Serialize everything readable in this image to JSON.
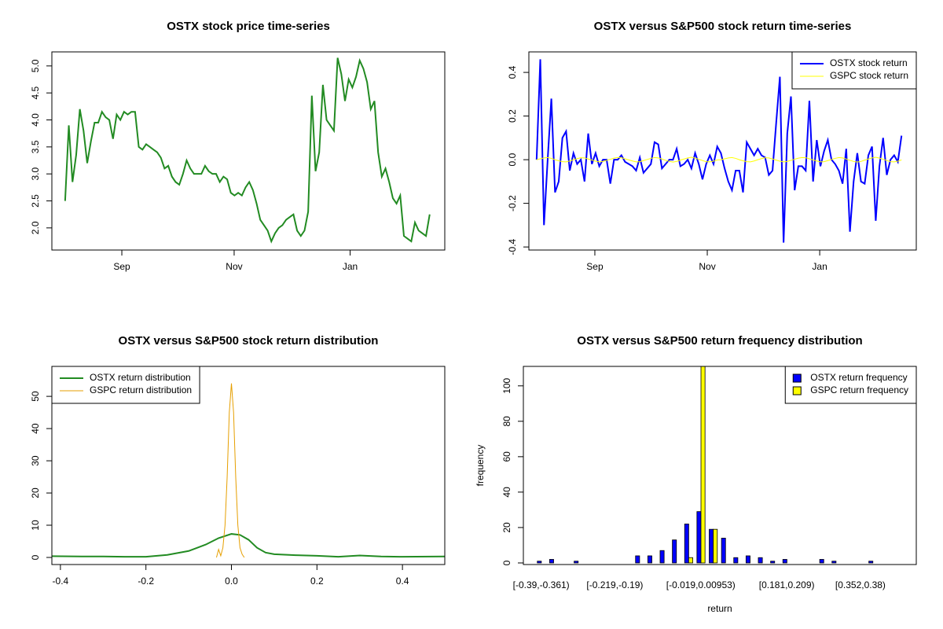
{
  "chart_data": [
    {
      "type": "line",
      "title": "OSTX stock price time-series",
      "color": "#228b22",
      "values": [
        2.5,
        3.9,
        2.85,
        3.35,
        4.2,
        3.8,
        3.2,
        3.6,
        3.95,
        3.95,
        4.15,
        4.05,
        4.0,
        3.65,
        4.1,
        4.0,
        4.15,
        4.1,
        4.15,
        4.15,
        3.5,
        3.45,
        3.55,
        3.5,
        3.45,
        3.4,
        3.3,
        3.1,
        3.15,
        2.95,
        2.85,
        2.8,
        3.0,
        3.25,
        3.1,
        3.0,
        3.0,
        3.0,
        3.15,
        3.05,
        3.0,
        3.0,
        2.85,
        2.95,
        2.9,
        2.65,
        2.6,
        2.65,
        2.6,
        2.75,
        2.85,
        2.7,
        2.45,
        2.15,
        2.05,
        1.95,
        1.75,
        1.9,
        2.0,
        2.05,
        2.15,
        2.2,
        2.25,
        1.95,
        1.85,
        1.95,
        2.3,
        4.45,
        3.05,
        3.4,
        4.65,
        4.0,
        3.9,
        3.8,
        5.15,
        4.85,
        4.35,
        4.75,
        4.6,
        4.8,
        5.1,
        4.95,
        4.7,
        4.2,
        4.35,
        3.4,
        2.95,
        3.1,
        2.85,
        2.55,
        2.45,
        2.6,
        1.85,
        1.8,
        1.75,
        2.1,
        1.95,
        1.9,
        1.85,
        2.25
      ],
      "xlim": [
        -3.6,
        103.1
      ],
      "xticks": [
        {
          "value": 15.4,
          "label": "Sep"
        },
        {
          "value": 45.9,
          "label": "Nov"
        },
        {
          "value": 77.4,
          "label": "Jan"
        }
      ],
      "ylim": [
        1.59,
        5.26
      ],
      "yticks": [
        {
          "value": 2,
          "label": "2.0"
        },
        2.5,
        {
          "value": 3,
          "label": "3.0"
        },
        3.5,
        {
          "value": 4,
          "label": "4.0"
        },
        4.5,
        {
          "value": 5,
          "label": "5.0"
        }
      ]
    },
    {
      "type": "line",
      "title": "OSTX versus S&P500 stock return time-series",
      "legend": "topright",
      "series": [
        {
          "name": "OSTX stock return",
          "color": "#0000ff",
          "values": [
            0.0,
            0.46,
            -0.3,
            0.0,
            0.28,
            -0.15,
            -0.1,
            0.1,
            0.13,
            -0.05,
            0.03,
            -0.02,
            0.0,
            -0.1,
            0.12,
            -0.02,
            0.03,
            -0.03,
            0.0,
            0.0,
            -0.11,
            0.0,
            0.0,
            0.02,
            -0.01,
            -0.02,
            -0.03,
            -0.05,
            0.01,
            -0.06,
            -0.04,
            -0.02,
            0.08,
            0.07,
            -0.04,
            -0.02,
            0.0,
            0.0,
            0.05,
            -0.03,
            -0.02,
            0.0,
            -0.04,
            0.03,
            -0.02,
            -0.09,
            -0.02,
            0.02,
            -0.02,
            0.06,
            0.03,
            -0.04,
            -0.1,
            -0.14,
            -0.05,
            -0.05,
            -0.15,
            0.08,
            0.05,
            0.02,
            0.05,
            0.02,
            0.01,
            -0.07,
            -0.05,
            0.17,
            0.38,
            -0.38,
            0.12,
            0.29,
            -0.14,
            -0.03,
            -0.03,
            -0.05,
            0.27,
            -0.1,
            0.09,
            -0.03,
            0.04,
            0.09,
            0.0,
            -0.02,
            -0.05,
            -0.11,
            0.05,
            -0.33,
            -0.1,
            0.03,
            -0.1,
            -0.11,
            0.02,
            0.06,
            -0.28,
            -0.03,
            0.1,
            -0.07,
            0.0,
            0.02,
            -0.01,
            0.11
          ]
        },
        {
          "name": "GSPC stock return",
          "color": "#ffff00",
          "values": [
            0.0,
            0.004,
            0.008,
            0.01,
            0.006,
            0.0,
            -0.005,
            -0.009,
            -0.01,
            -0.006,
            0.0,
            0.005,
            0.009,
            0.008,
            0.003,
            -0.002,
            -0.007,
            -0.01,
            -0.008,
            -0.003,
            0.002,
            0.007,
            0.01,
            0.009,
            0.004,
            -0.001,
            -0.006,
            -0.01,
            -0.009,
            -0.004,
            0.001,
            0.006,
            0.01,
            0.008,
            0.003,
            -0.003,
            -0.008,
            -0.011,
            -0.008,
            -0.002,
            0.003,
            0.008,
            0.011,
            0.007,
            0.002,
            -0.004,
            -0.009,
            -0.01,
            -0.007,
            -0.001,
            0.0,
            0.004,
            0.008,
            0.01,
            0.006,
            0.0,
            -0.005,
            -0.009,
            -0.01,
            -0.006,
            0.0,
            0.005,
            0.009,
            0.008,
            0.003,
            -0.002,
            -0.007,
            -0.01,
            -0.008,
            -0.003,
            0.002,
            0.007,
            0.01,
            0.009,
            0.004,
            -0.001,
            -0.006,
            -0.01,
            -0.009,
            -0.004,
            0.001,
            0.006,
            0.01,
            0.008,
            0.003,
            -0.003,
            -0.008,
            -0.011,
            -0.008,
            -0.002,
            0.003,
            0.008,
            0.011,
            0.007,
            0.002,
            -0.004,
            -0.009,
            -0.01,
            -0.007,
            -0.001
          ]
        }
      ],
      "xlim": [
        -2.1,
        103
      ],
      "xticks": [
        {
          "value": 15.8,
          "label": "Sep"
        },
        {
          "value": 46.3,
          "label": "Nov"
        },
        {
          "value": 76.8,
          "label": "Jan"
        }
      ],
      "ylim": [
        -0.414,
        0.494
      ],
      "yticks": [
        -0.4,
        -0.2,
        {
          "value": 0,
          "label": "0.0"
        },
        0.2,
        0.4
      ]
    },
    {
      "type": "line",
      "title": "OSTX versus S&P500 stock return distribution",
      "legend": "topleft",
      "series": [
        {
          "name": "OSTX return distribution",
          "color": "#228b22",
          "x": [
            -0.42,
            -0.35,
            -0.3,
            -0.25,
            -0.2,
            -0.15,
            -0.1,
            -0.06,
            -0.03,
            0.0,
            0.02,
            0.04,
            0.06,
            0.08,
            0.1,
            0.15,
            0.2,
            0.25,
            0.3,
            0.35,
            0.4,
            0.5
          ],
          "values": [
            0.4,
            0.3,
            0.3,
            0.2,
            0.2,
            0.8,
            2,
            4,
            6,
            7.3,
            7,
            5.5,
            3,
            1.5,
            1,
            0.7,
            0.5,
            0.2,
            0.6,
            0.3,
            0.2,
            0.3
          ]
        },
        {
          "name": "GSPC return distribution",
          "color": "#e69f00",
          "x": [
            -0.035,
            -0.03,
            -0.025,
            -0.02,
            -0.015,
            -0.01,
            -0.005,
            0,
            0.005,
            0.01,
            0.015,
            0.02,
            0.025,
            0.03
          ],
          "values": [
            0,
            2.5,
            0.5,
            3,
            10,
            25,
            45,
            54,
            45,
            25,
            10,
            3,
            1,
            0
          ]
        }
      ],
      "xlim": [
        -0.42,
        0.499
      ],
      "xticks": [
        -0.4,
        -0.2,
        {
          "value": 0,
          "label": "0.0"
        },
        0.2,
        0.4
      ],
      "ylim": [
        -2.2,
        59.3
      ],
      "yticks": [
        0,
        10,
        20,
        30,
        40,
        50
      ]
    },
    {
      "type": "bar",
      "title": "OSTX versus S&P500 return frequency distribution",
      "legend": "topright",
      "xlabel": "return",
      "ylabel": "frequency",
      "categories": [
        "[-0.39,-0.361)",
        null,
        null,
        null,
        null,
        null,
        "[-0.219,-0.19)",
        null,
        null,
        null,
        null,
        null,
        null,
        "[-0.019,0.00953)",
        null,
        null,
        null,
        null,
        null,
        null,
        "[0.181,0.209)",
        null,
        null,
        null,
        null,
        null,
        "[0.352,0.38)",
        null,
        null,
        null
      ],
      "series": [
        {
          "name": "OSTX return frequency",
          "color": "#0000ff",
          "values": [
            1,
            2,
            0,
            1,
            0,
            0,
            0,
            0,
            4,
            4,
            7,
            13,
            22,
            29,
            19,
            14,
            3,
            4,
            3,
            1,
            2,
            0,
            0,
            2,
            1,
            0,
            0,
            1,
            0,
            0
          ]
        },
        {
          "name": "GSPC return frequency",
          "color": "#ffff00",
          "values": [
            0,
            0,
            0,
            0,
            0,
            0,
            0,
            0,
            0,
            0,
            0,
            0,
            3,
            111,
            19,
            0,
            0,
            0,
            0,
            0,
            0,
            0,
            0,
            0,
            0,
            0,
            0,
            0,
            0,
            0
          ]
        }
      ],
      "ylim": [
        -0.9,
        111
      ],
      "yticks": [
        0,
        20,
        40,
        60,
        80,
        100
      ]
    }
  ]
}
